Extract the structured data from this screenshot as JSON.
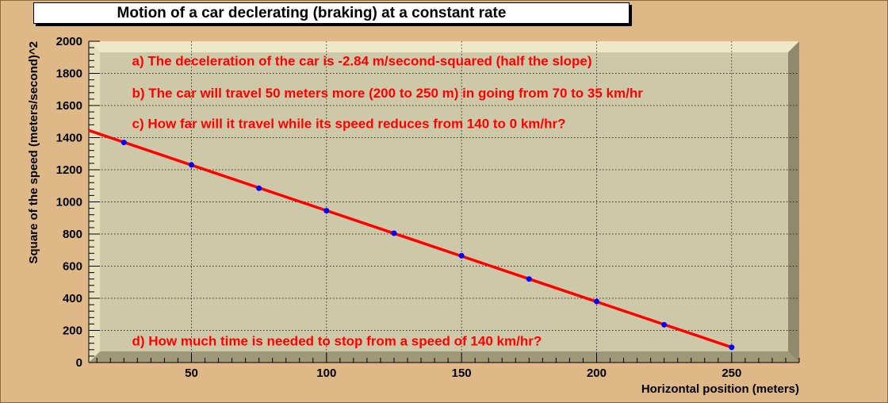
{
  "title": "Motion of a car declerating (braking) at a constant rate",
  "chart_data": {
    "type": "scatter",
    "xlabel": "Horizontal position (meters)",
    "ylabel": "Square of the speed (meters/second)^2",
    "xlim": [
      12,
      275
    ],
    "ylim": [
      0,
      2000
    ],
    "x_ticks": [
      50,
      100,
      150,
      200,
      250
    ],
    "y_ticks": [
      0,
      200,
      400,
      600,
      800,
      1000,
      1200,
      1400,
      1600,
      1800,
      2000
    ],
    "grid": true,
    "series": [
      {
        "x": [
          25,
          50,
          75,
          100,
          125,
          150,
          175,
          200,
          225,
          250
        ],
        "y": [
          1370,
          1230,
          1085,
          945,
          805,
          665,
          520,
          380,
          235,
          95
        ],
        "marker_color": "#0000ff"
      }
    ],
    "fit_line": {
      "x": [
        12,
        250
      ],
      "y": [
        1445,
        95
      ],
      "color": "#ff0000"
    },
    "annotations": [
      {
        "text": "a) The deceleration of the car is -2.84 m/second-squared (half the slope)",
        "x": 28,
        "y": 1880
      },
      {
        "text": "b) The car will travel 50 meters more (200 to 250 m) in going from 70 to 35 km/hr",
        "x": 28,
        "y": 1680
      },
      {
        "text": "c) How far will it travel while its speed reduces from 140 to 0 km/hr?",
        "x": 28,
        "y": 1490
      },
      {
        "text": "d) How much time is needed to stop from a speed of 140 km/hr?",
        "x": 28,
        "y": 135
      }
    ]
  },
  "colors": {
    "background": "#deb887",
    "plot_bg": "#cdc8a8",
    "line": "#ff0000",
    "markers": "#0000ff",
    "annotations": "#ff0000"
  }
}
